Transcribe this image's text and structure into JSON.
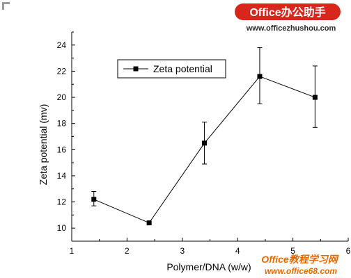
{
  "chart_data": {
    "type": "line",
    "x": [
      1.4,
      2.4,
      3.4,
      4.4,
      5.4
    ],
    "series": [
      {
        "name": "Zeta potential",
        "values": [
          12.2,
          10.4,
          16.5,
          21.6,
          20.0
        ],
        "err_up": [
          0.6,
          0.0,
          1.6,
          2.2,
          2.4
        ],
        "err_down": [
          0.5,
          0.0,
          1.6,
          2.1,
          2.3
        ]
      }
    ],
    "xlabel": "Polymer/DNA (w/w)",
    "ylabel": "Zeta potential (mv)",
    "xlim": [
      1,
      6
    ],
    "ylim": [
      9,
      25
    ],
    "xticks": [
      1,
      2,
      3,
      4,
      5,
      6
    ],
    "yticks": [
      10,
      12,
      14,
      16,
      18,
      20,
      22,
      24
    ],
    "grid": false,
    "legend_position": "top-left",
    "line_color": "#000000",
    "marker": "square"
  },
  "watermarks": {
    "brand_top": "Office办公助手",
    "url_top": "www.officezhushou.com",
    "brand_bottom": "Office教程学习网",
    "url_bottom": "www.office68.com",
    "brand_color": "#d9261c",
    "bottom_color": "#e46a00"
  }
}
